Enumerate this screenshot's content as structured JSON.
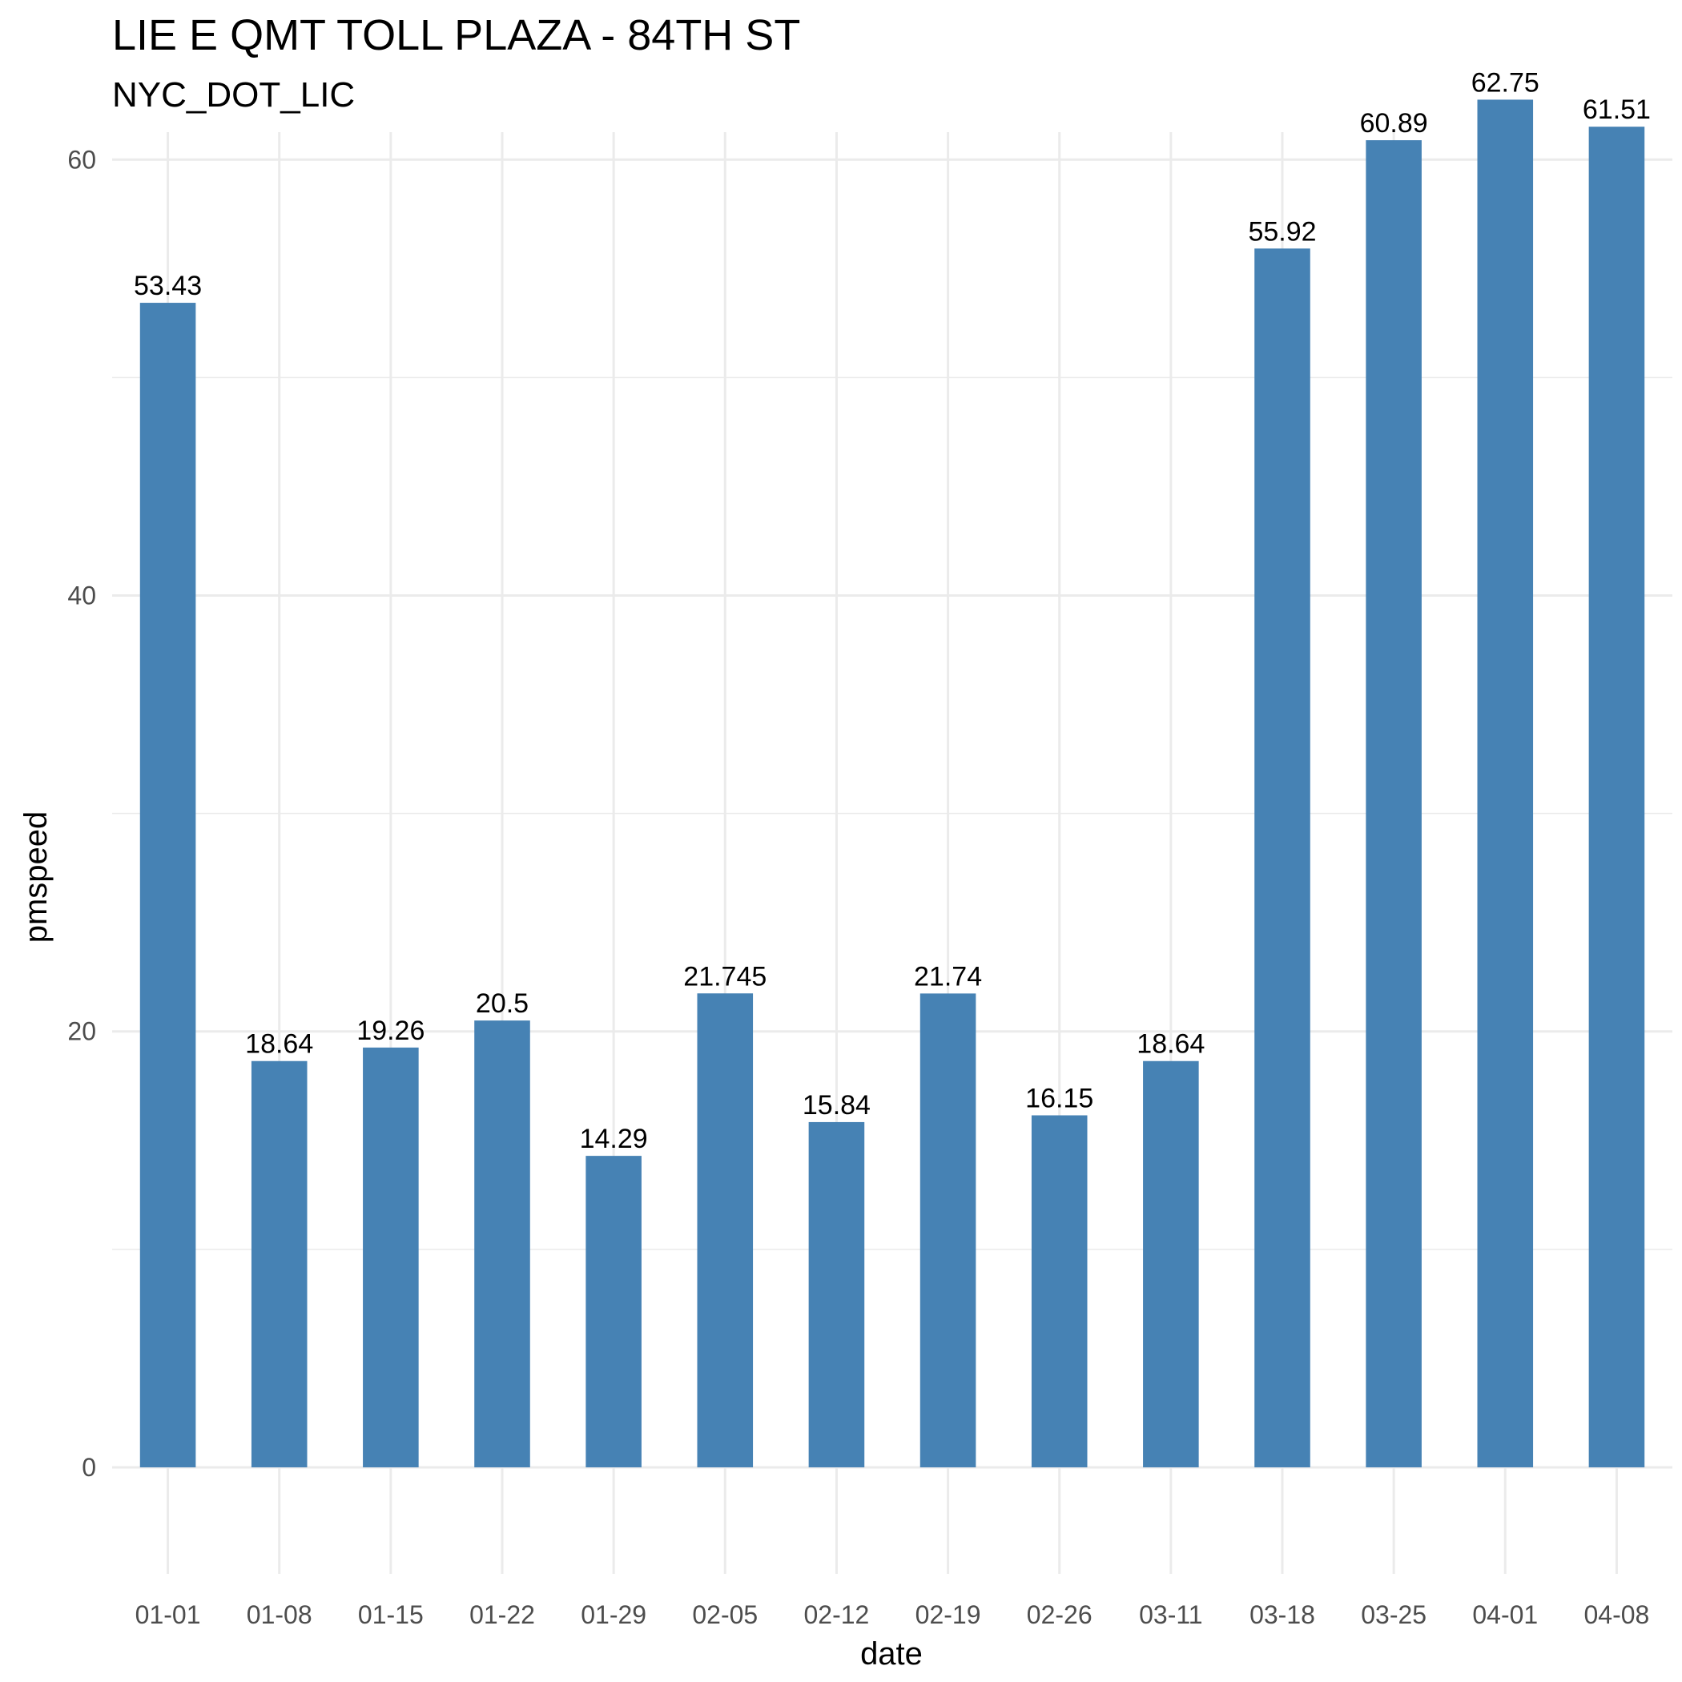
{
  "chart_data": {
    "type": "bar",
    "title": "LIE E QMT TOLL PLAZA - 84TH ST",
    "subtitle": "NYC_DOT_LIC",
    "xlabel": "date",
    "ylabel": "pmspeed",
    "categories": [
      "01-01",
      "01-08",
      "01-15",
      "01-22",
      "01-29",
      "02-05",
      "02-12",
      "02-19",
      "02-26",
      "03-11",
      "03-18",
      "03-25",
      "04-01",
      "04-08"
    ],
    "values": [
      53.43,
      18.64,
      19.26,
      20.5,
      14.29,
      21.745,
      15.84,
      21.74,
      16.15,
      18.64,
      55.92,
      60.89,
      62.75,
      61.51
    ],
    "value_labels": [
      "53.43",
      "18.64",
      "19.26",
      "20.5",
      "14.29",
      "21.745",
      "15.84",
      "21.74",
      "16.15",
      "18.64",
      "55.92",
      "60.89",
      "62.75",
      "61.51"
    ],
    "y_ticks": [
      0,
      20,
      40,
      60
    ],
    "y_minor_ticks": [
      10,
      30,
      50
    ],
    "ylim": [
      -2.5,
      66
    ],
    "grid": true,
    "legend": "none",
    "bar_color": "#4682b4"
  }
}
